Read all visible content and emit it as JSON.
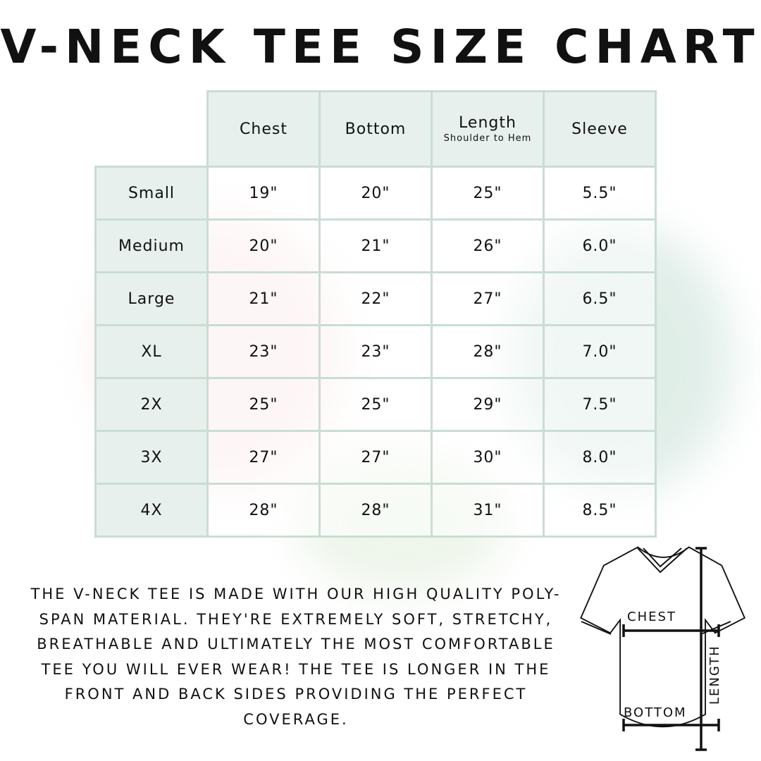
{
  "title": "V-NECK TEE SIZE CHART",
  "chart_data": {
    "type": "table",
    "columns": [
      {
        "label": "Chest",
        "sub": ""
      },
      {
        "label": "Bottom",
        "sub": ""
      },
      {
        "label": "Length",
        "sub": "Shoulder to Hem"
      },
      {
        "label": "Sleeve",
        "sub": ""
      }
    ],
    "rows": [
      {
        "size": "Small",
        "values": [
          "19\"",
          "20\"",
          "25\"",
          "5.5\""
        ]
      },
      {
        "size": "Medium",
        "values": [
          "20\"",
          "21\"",
          "26\"",
          "6.0\""
        ]
      },
      {
        "size": "Large",
        "values": [
          "21\"",
          "22\"",
          "27\"",
          "6.5\""
        ]
      },
      {
        "size": "XL",
        "values": [
          "23\"",
          "23\"",
          "28\"",
          "7.0\""
        ]
      },
      {
        "size": "2X",
        "values": [
          "25\"",
          "25\"",
          "29\"",
          "7.5\""
        ]
      },
      {
        "size": "3X",
        "values": [
          "27\"",
          "27\"",
          "30\"",
          "8.0\""
        ]
      },
      {
        "size": "4X",
        "values": [
          "28\"",
          "28\"",
          "31\"",
          "8.5\""
        ]
      }
    ]
  },
  "description": "The V-neck tee is made with our high quality poly-span material. They're extremely soft, stretchy, breathable and ultimately the most comfortable tee you will ever wear! The tee is longer in the front and back sides providing the perfect coverage.",
  "diagram": {
    "chest": "CHEST",
    "bottom": "BOTTOM",
    "length": "LENGTH"
  },
  "colors": {
    "border": "#c9ddd3",
    "header_bg": "#e7f0ec",
    "text": "#111111"
  }
}
